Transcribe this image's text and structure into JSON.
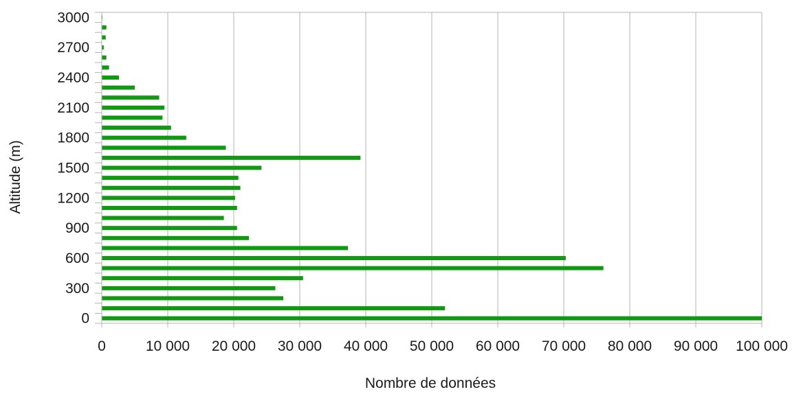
{
  "chart_data": {
    "type": "bar",
    "orientation": "horizontal",
    "xlabel": "Nombre de données",
    "ylabel": "Altitude (m)",
    "xlim": [
      0,
      100000
    ],
    "ylim": [
      0,
      3000
    ],
    "x_ticks": [
      0,
      10000,
      20000,
      30000,
      40000,
      50000,
      60000,
      70000,
      80000,
      90000,
      100000
    ],
    "x_tick_labels": [
      "0",
      "10 000",
      "20 000",
      "30 000",
      "40 000",
      "50 000",
      "60 000",
      "70 000",
      "80 000",
      "90 000",
      "100 000"
    ],
    "y_ticks": [
      0,
      300,
      600,
      900,
      1200,
      1500,
      1800,
      2100,
      2400,
      2700,
      3000
    ],
    "y_tick_labels": [
      "0",
      "300",
      "600",
      "900",
      "1200",
      "1500",
      "1800",
      "2100",
      "2400",
      "2700",
      "3000"
    ],
    "grid": "vertical",
    "bar_color": "#119911",
    "categories": [
      0,
      100,
      200,
      300,
      400,
      500,
      600,
      700,
      800,
      900,
      1000,
      1100,
      1200,
      1300,
      1400,
      1500,
      1600,
      1700,
      1800,
      1900,
      2000,
      2100,
      2200,
      2300,
      2400,
      2500,
      2600,
      2700,
      2800,
      2900,
      3000
    ],
    "values": [
      100000,
      52000,
      27500,
      26300,
      30500,
      76000,
      70300,
      37300,
      22300,
      20500,
      18500,
      20500,
      20200,
      21000,
      20700,
      24200,
      39200,
      18800,
      12800,
      10500,
      9200,
      9500,
      8700,
      5000,
      2600,
      1100,
      700,
      300,
      600,
      700,
      100
    ]
  }
}
